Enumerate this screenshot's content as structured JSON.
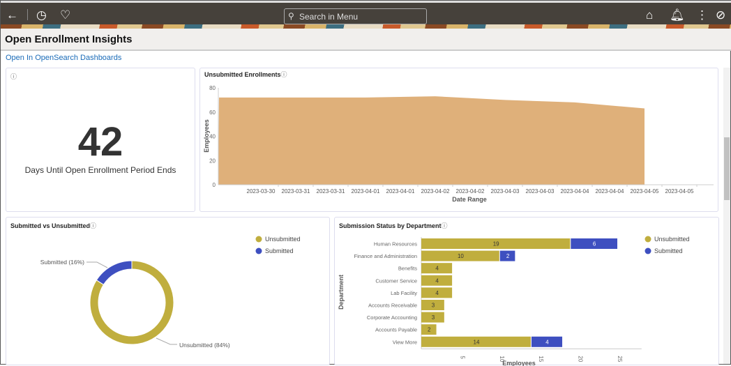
{
  "topbar": {
    "back_icon": "arrow-left-icon",
    "history_icon": "clock-icon",
    "favorites_icon": "heart-icon",
    "search_placeholder": "Search in Menu",
    "home_icon": "home-icon",
    "bell_icon": "bell-icon",
    "more_icon": "kebab-icon",
    "nav_icon": "compass-icon"
  },
  "page": {
    "title": "Open Enrollment Insights",
    "link": "Open In OpenSearch Dashboards"
  },
  "kpi": {
    "value": "42",
    "caption": "Days Until Open Enrollment Period Ends",
    "info": "ⓘ"
  },
  "colors": {
    "unsubmitted": "#c0ae3e",
    "submitted": "#3e4fc0",
    "area": "#dfb07a"
  },
  "chart_data": [
    {
      "type": "area",
      "title": "Unsubmitted Enrollments",
      "xlabel": "Date Range",
      "ylabel": "Employees",
      "ylim": [
        0,
        80
      ],
      "yticks": [
        0,
        20,
        40,
        60,
        80
      ],
      "xticks": [
        "2023-03-30",
        "2023-03-31",
        "2023-03-31",
        "2023-04-01",
        "2023-04-01",
        "2023-04-02",
        "2023-04-02",
        "2023-04-03",
        "2023-04-03",
        "2023-04-04",
        "2023-04-04",
        "2023-04-05",
        "2023-04-05"
      ],
      "x": [
        -1.2,
        0,
        1,
        2,
        3,
        4,
        5,
        6,
        7,
        8,
        9,
        10,
        11
      ],
      "values": [
        72,
        72,
        72,
        72,
        72,
        72.5,
        73,
        71.5,
        70,
        69,
        68,
        65.5,
        63
      ]
    },
    {
      "type": "pie",
      "title": "Submitted vs Unsubmitted",
      "legend": [
        "Unsubmitted",
        "Submitted"
      ],
      "slices": [
        {
          "name": "Unsubmitted",
          "value": 84,
          "label": "Unsubmitted (84%)"
        },
        {
          "name": "Submitted",
          "value": 16,
          "label": "Submitted (16%)"
        }
      ]
    },
    {
      "type": "bar",
      "orientation": "horizontal",
      "stacked": true,
      "title": "Submission Status by Department",
      "xlabel": "Employees",
      "ylabel": "Department",
      "xlim": [
        0,
        28
      ],
      "xticks": [
        5,
        10,
        15,
        20,
        25
      ],
      "categories": [
        "Human Resources",
        "Finance and Administration",
        "Benefits",
        "Customer Service",
        "Lab Facility",
        "Accounts Receivable",
        "Corporate Accounting",
        "Accounts Payable",
        "View More"
      ],
      "series": [
        {
          "name": "Unsubmitted",
          "values": [
            19,
            10,
            4,
            4,
            4,
            3,
            3,
            2,
            14
          ]
        },
        {
          "name": "Submitted",
          "values": [
            6,
            2,
            0,
            0,
            0,
            0,
            0,
            0,
            4
          ]
        }
      ],
      "legend": [
        "Unsubmitted",
        "Submitted"
      ]
    }
  ]
}
